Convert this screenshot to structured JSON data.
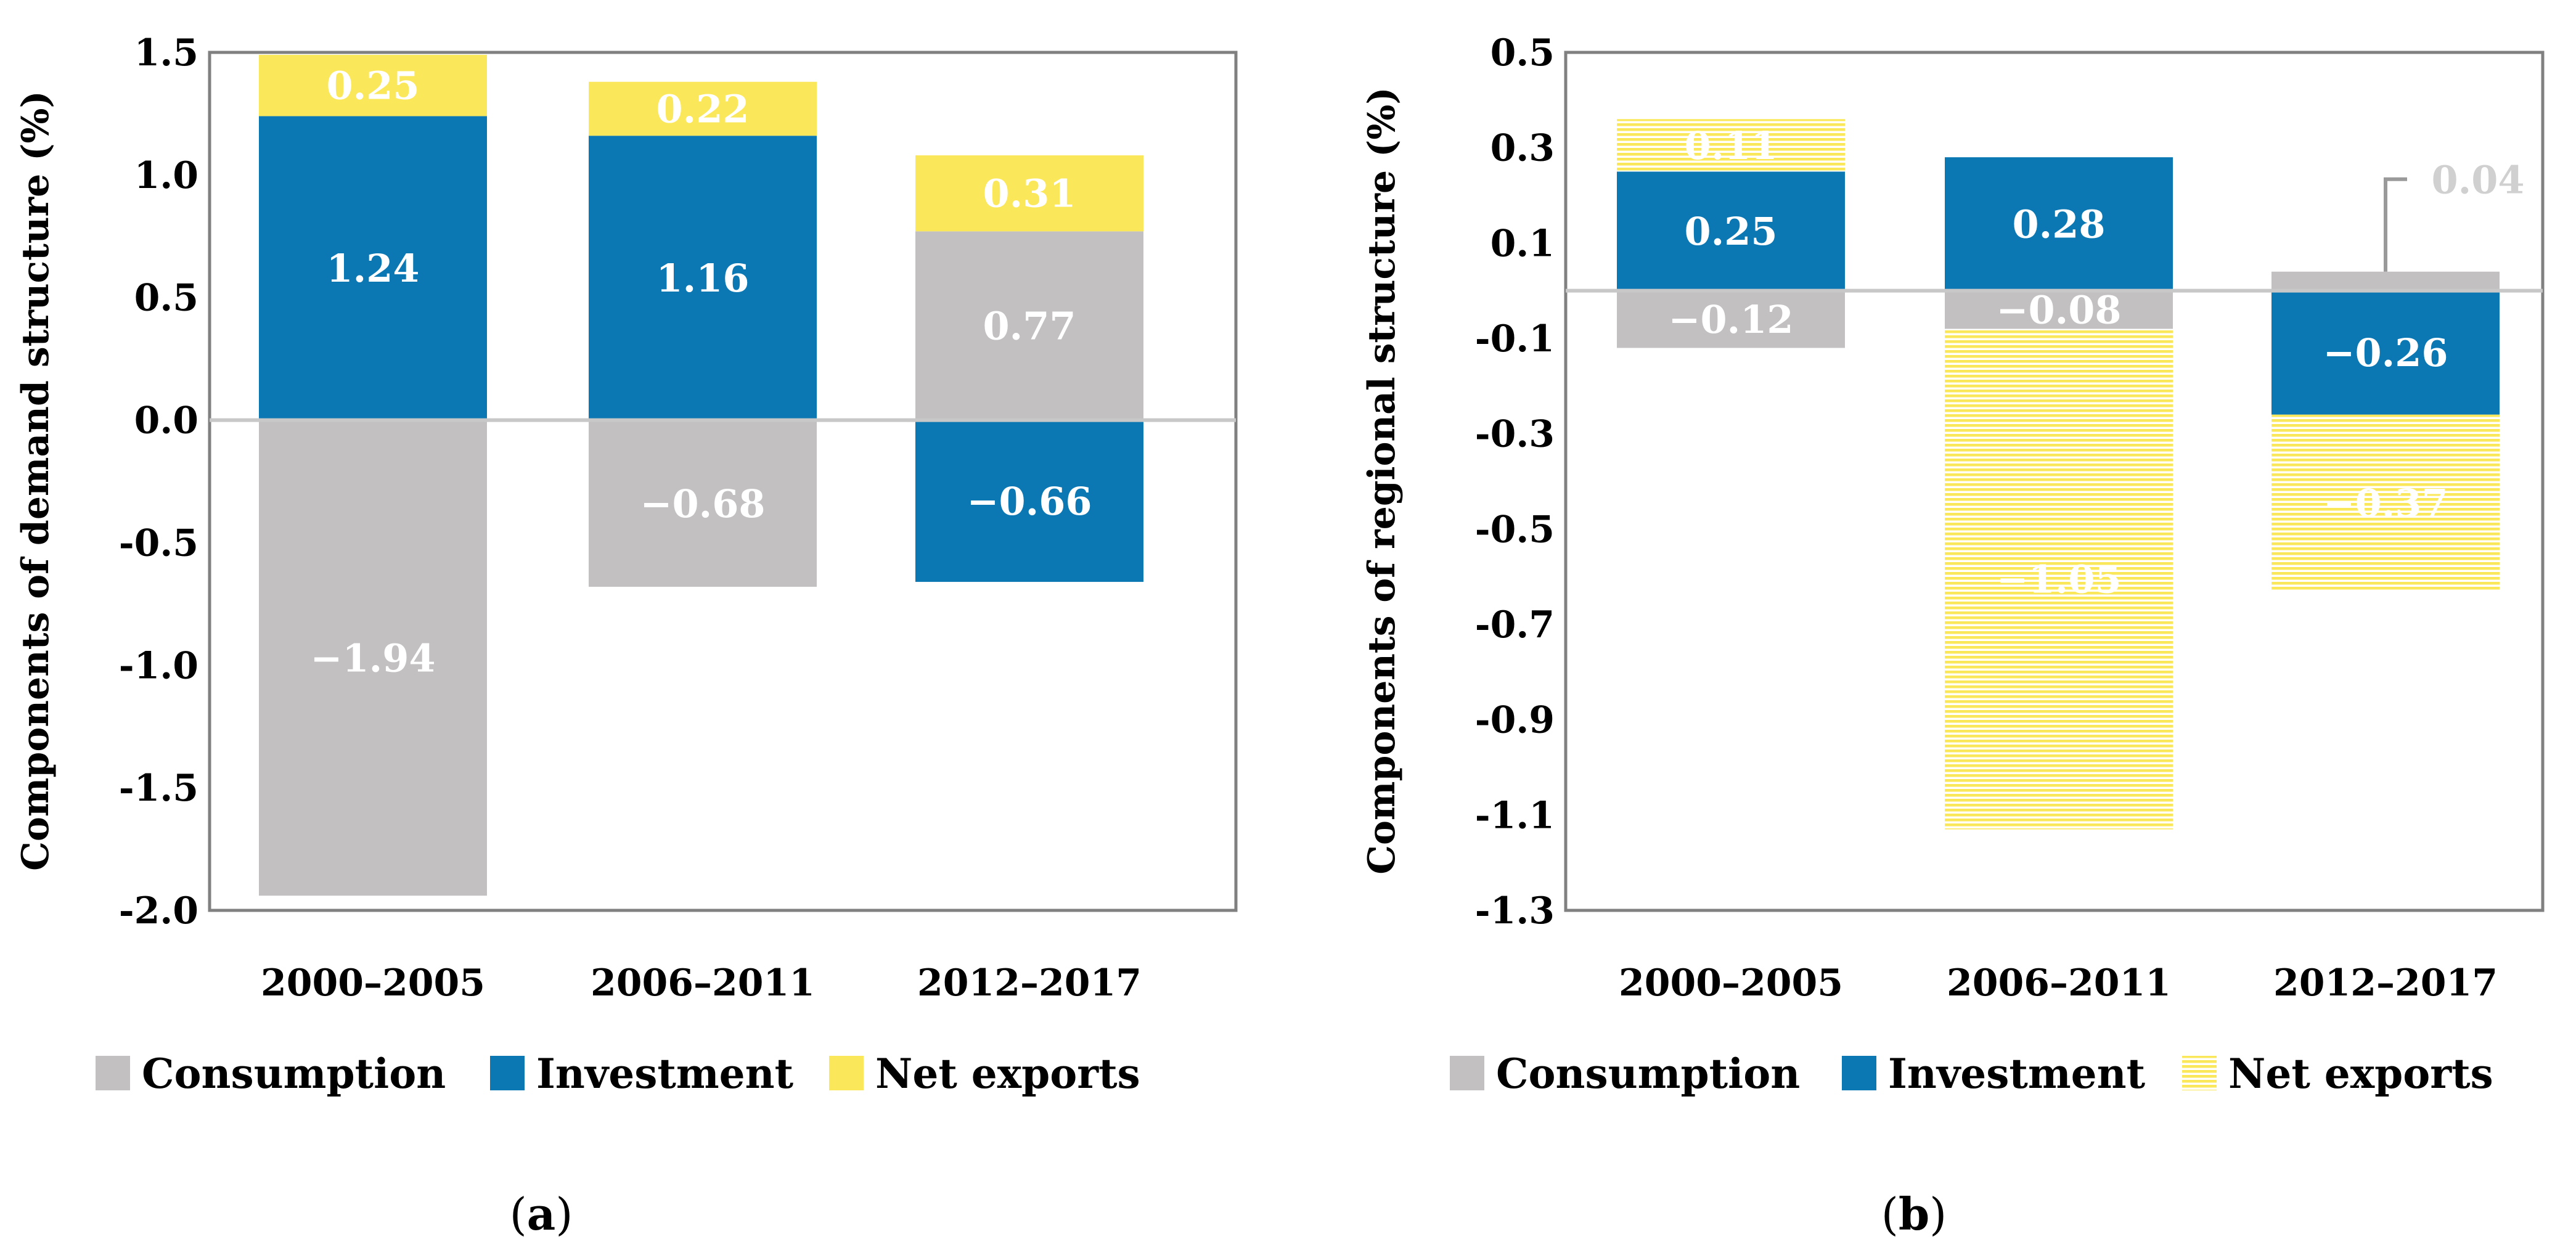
{
  "colors": {
    "consumption": "#c2c0c1",
    "investment": "#0b78b3",
    "net_exports": "#fbe85a",
    "zero_line": "#c8c8c8",
    "frame": "#808080",
    "value_text": "#ffffff",
    "callout_text": "#d0d0d0"
  },
  "chart_data": [
    {
      "type": "bar",
      "stacked": true,
      "panel": "a",
      "caption": {
        "open": "(",
        "letter": "a",
        "close": ")"
      },
      "ylabel": "Components of demand structure (%)",
      "xlabel": "",
      "ylim": [
        -2.0,
        1.5
      ],
      "yticks": [
        "-2.0",
        "-1.5",
        "-1.0",
        "-0.5",
        "0.0",
        "0.5",
        "1.0",
        "1.5"
      ],
      "ytick_values": [
        -2.0,
        -1.5,
        -1.0,
        -0.5,
        0.0,
        0.5,
        1.0,
        1.5
      ],
      "categories": [
        "2000–2005",
        "2006–2011",
        "2012–2017"
      ],
      "legend_position": "bottom",
      "series": [
        {
          "name": "Consumption",
          "key": "consumption",
          "hatched": false,
          "values": [
            -1.94,
            -0.68,
            0.77
          ],
          "labels": [
            "−1.94",
            "−0.68",
            "0.77"
          ]
        },
        {
          "name": "Investment",
          "key": "investment",
          "hatched": false,
          "values": [
            1.24,
            1.16,
            -0.66
          ],
          "labels": [
            "1.24",
            "1.16",
            "−0.66"
          ]
        },
        {
          "name": "Net exports",
          "key": "net_exports",
          "hatched": false,
          "values": [
            0.25,
            0.22,
            0.31
          ],
          "labels": [
            "0.25",
            "0.22",
            "0.31"
          ]
        }
      ]
    },
    {
      "type": "bar",
      "stacked": true,
      "panel": "b",
      "caption": {
        "open": "(",
        "letter": "b",
        "close": ")"
      },
      "ylabel": "Components of regional structure (%)",
      "xlabel": "",
      "ylim": [
        -1.3,
        0.5
      ],
      "yticks": [
        "-1.3",
        "-1.1",
        "-0.9",
        "-0.7",
        "-0.5",
        "-0.3",
        "-0.1",
        "0.1",
        "0.3",
        "0.5"
      ],
      "ytick_values": [
        -1.3,
        -1.1,
        -0.9,
        -0.7,
        -0.5,
        -0.3,
        -0.1,
        0.1,
        0.3,
        0.5
      ],
      "categories": [
        "2000–2005",
        "2006–2011",
        "2012–2017"
      ],
      "legend_position": "bottom",
      "series": [
        {
          "name": "Consumption",
          "key": "consumption",
          "hatched": false,
          "values": [
            -0.12,
            -0.08,
            0.04
          ],
          "labels": [
            "−0.12",
            "−0.08",
            "0.04"
          ],
          "callout": [
            false,
            false,
            true
          ]
        },
        {
          "name": "Investment",
          "key": "investment",
          "hatched": false,
          "values": [
            0.25,
            0.28,
            -0.26
          ],
          "labels": [
            "0.25",
            "0.28",
            "−0.26"
          ]
        },
        {
          "name": "Net exports",
          "key": "net_exports",
          "hatched": true,
          "values": [
            0.11,
            -1.05,
            -0.37
          ],
          "labels": [
            "0.11",
            "−1.05",
            "−0.37"
          ]
        }
      ]
    }
  ]
}
